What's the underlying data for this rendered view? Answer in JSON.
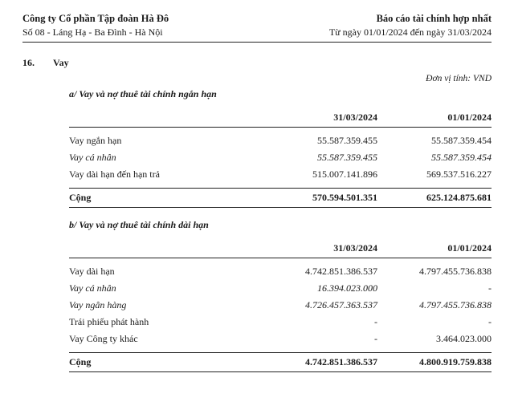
{
  "header": {
    "company": "Công ty Cổ phần Tập đoàn Hà Đô",
    "address": "Số 08 - Láng Hạ - Ba Đình - Hà Nội",
    "report_title": "Báo cáo tài chính hợp nhất",
    "period": "Từ ngày 01/01/2024 đến ngày 31/03/2024"
  },
  "note": {
    "number": "16.",
    "title": "Vay",
    "unit": "Đơn vị tính: VND"
  },
  "section_a": {
    "heading": "a/ Vay và nợ thuê tài chính ngắn hạn",
    "col1": "31/03/2024",
    "col2": "01/01/2024",
    "rows": [
      {
        "label": "Vay ngắn hạn",
        "c1": "55.587.359.455",
        "c2": "55.587.359.454",
        "italic": false
      },
      {
        "label": "Vay cá nhân",
        "c1": "55.587.359.455",
        "c2": "55.587.359.454",
        "italic": true
      },
      {
        "label": "Vay dài hạn đến hạn trả",
        "c1": "515.007.141.896",
        "c2": "569.537.516.227",
        "italic": false
      }
    ],
    "total": {
      "label": "Cộng",
      "c1": "570.594.501.351",
      "c2": "625.124.875.681"
    }
  },
  "section_b": {
    "heading": "b/ Vay và nợ thuê tài chính dài hạn",
    "col1": "31/03/2024",
    "col2": "01/01/2024",
    "rows": [
      {
        "label": "Vay dài hạn",
        "c1": "4.742.851.386.537",
        "c2": "4.797.455.736.838",
        "italic": false
      },
      {
        "label": "Vay cá nhân",
        "c1": "16.394.023.000",
        "c2": "-",
        "italic": true
      },
      {
        "label": "Vay ngân hàng",
        "c1": "4.726.457.363.537",
        "c2": "4.797.455.736.838",
        "italic": true
      },
      {
        "label": "Trái phiếu phát hành",
        "c1": "-",
        "c2": "-",
        "italic": false
      },
      {
        "label": "Vay Công ty khác",
        "c1": "-",
        "c2": "3.464.023.000",
        "italic": false
      }
    ],
    "total": {
      "label": "Cộng",
      "c1": "4.742.851.386.537",
      "c2": "4.800.919.759.838"
    }
  }
}
